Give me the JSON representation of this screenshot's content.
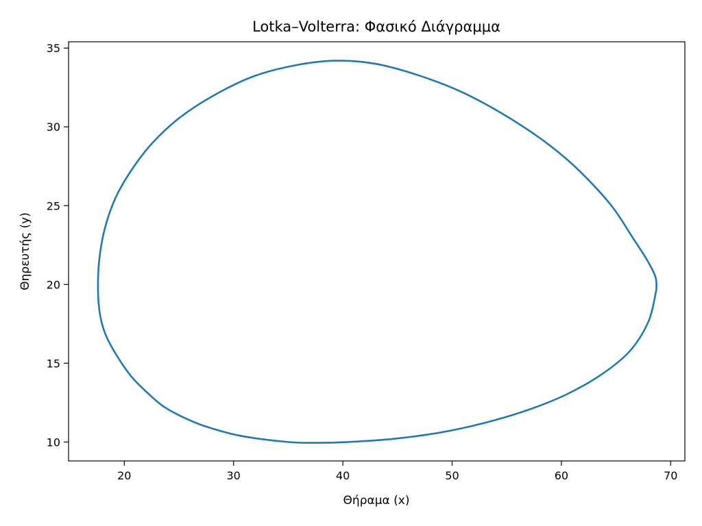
{
  "chart_data": {
    "type": "line",
    "title": "Lotka–Volterra: Φασικό Διάγραμμα",
    "xlabel": "Θήραμα (x)",
    "ylabel": "Θηρευτής (y)",
    "xlim": [
      14.9,
      71.3
    ],
    "ylim": [
      8.8,
      35.4
    ],
    "xticks": [
      20,
      30,
      40,
      50,
      60,
      70
    ],
    "yticks": [
      10,
      15,
      20,
      25,
      30,
      35
    ],
    "grid": false,
    "line_color": "#1f77b4",
    "series": [
      {
        "x": [
          68.7,
          68.0,
          66.3,
          63.7,
          60.4,
          56.8,
          52.9,
          48.9,
          44.6,
          40.4,
          37.6,
          35.0,
          30.6,
          27.4,
          25.3,
          23.5,
          22.0,
          20.6,
          19.3,
          18.3,
          17.8,
          17.6,
          17.7,
          18.2,
          19.2,
          20.7,
          22.6,
          25.1,
          28.2,
          31.8,
          35.6,
          39.3,
          43.0,
          46.8,
          50.6,
          54.2,
          57.6,
          60.4,
          62.8,
          64.8,
          66.5,
          67.8,
          68.6,
          68.7
        ],
        "y": [
          19.7,
          17.7,
          15.8,
          14.3,
          13.0,
          12.0,
          11.2,
          10.6,
          10.2,
          10.0,
          9.95,
          10.0,
          10.4,
          11.0,
          11.6,
          12.3,
          13.2,
          14.2,
          15.5,
          16.8,
          18.0,
          19.5,
          21.5,
          23.5,
          25.5,
          27.3,
          29.0,
          30.6,
          32.0,
          33.2,
          33.9,
          34.2,
          34.0,
          33.3,
          32.3,
          31.0,
          29.5,
          28.0,
          26.4,
          24.8,
          23.0,
          21.6,
          20.5,
          19.7
        ]
      }
    ]
  }
}
